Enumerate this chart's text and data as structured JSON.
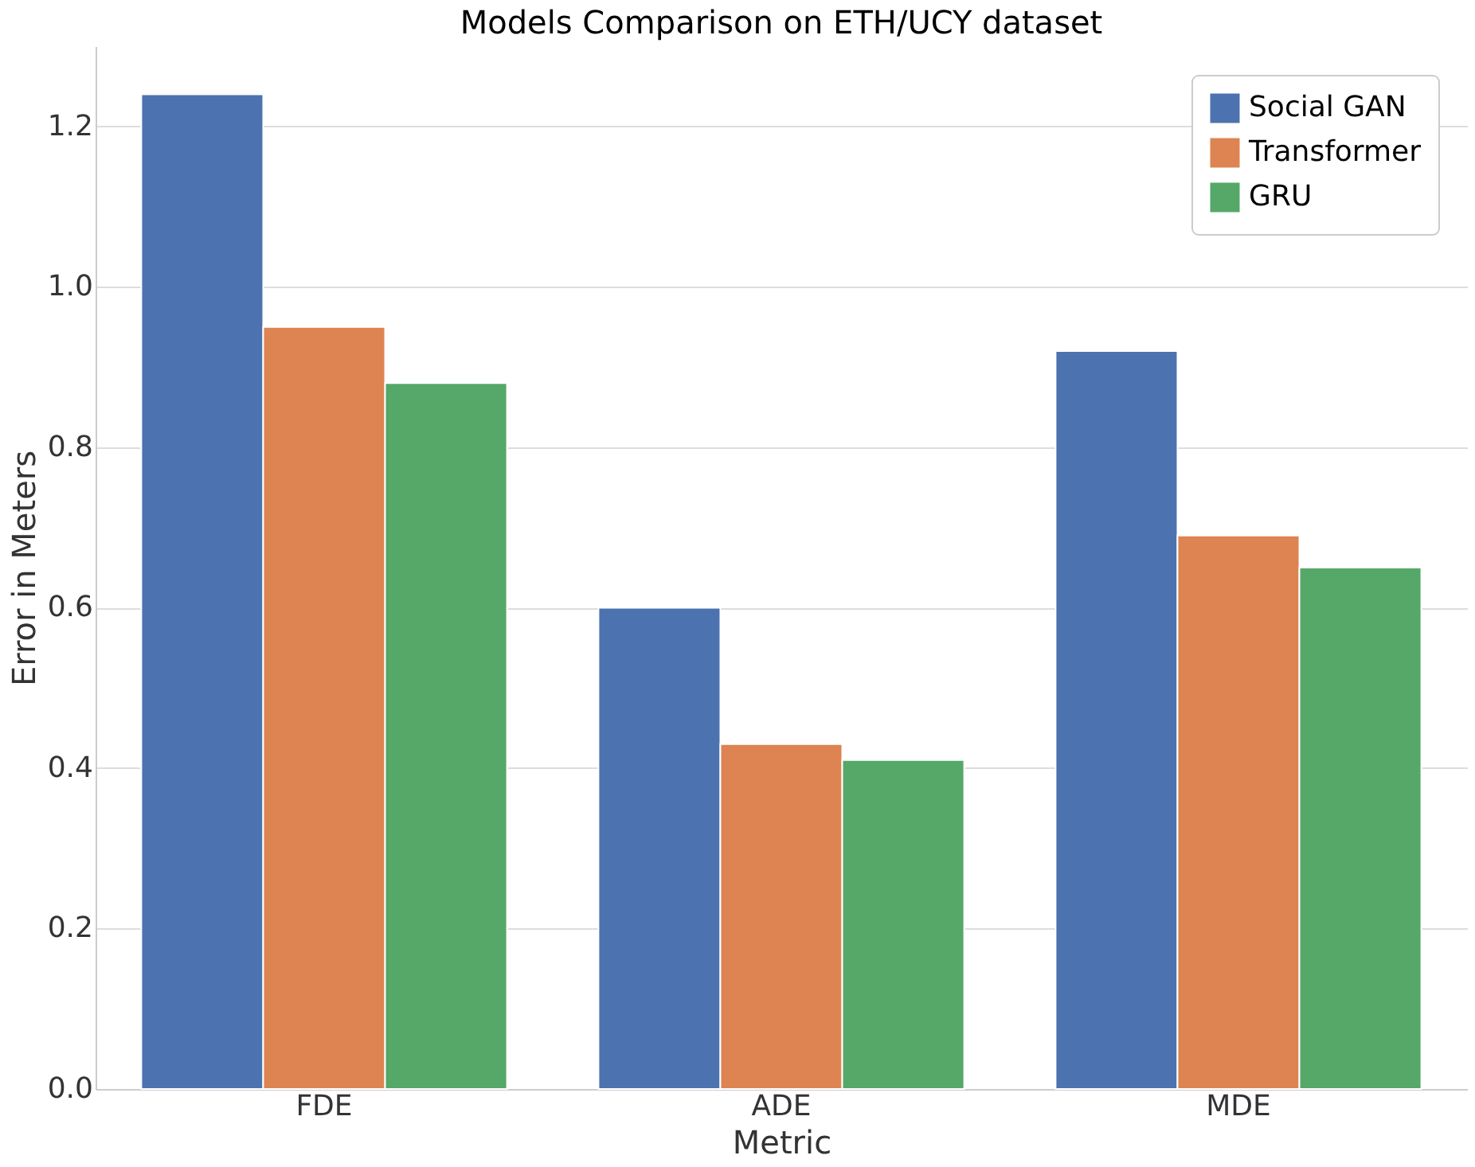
{
  "chart_data": {
    "type": "bar",
    "title": "Models Comparison on ETH/UCY dataset",
    "xlabel": "Metric",
    "ylabel": "Error in Meters",
    "categories": [
      "FDE",
      "ADE",
      "MDE"
    ],
    "series": [
      {
        "name": "Social GAN",
        "color": "#4c72b0",
        "values": [
          1.24,
          0.6,
          0.92
        ]
      },
      {
        "name": "Transformer",
        "color": "#dd8452",
        "values": [
          0.95,
          0.43,
          0.69
        ]
      },
      {
        "name": "GRU",
        "color": "#55a868",
        "values": [
          0.88,
          0.41,
          0.65
        ]
      }
    ],
    "ylim": [
      0,
      1.3
    ],
    "yticks": [
      {
        "value": 0,
        "label": "0.0"
      },
      0.2,
      0.4,
      0.6,
      0.8,
      {
        "value": 1,
        "label": "1.0"
      },
      1.2
    ],
    "grid": "y",
    "legend": "top right"
  }
}
